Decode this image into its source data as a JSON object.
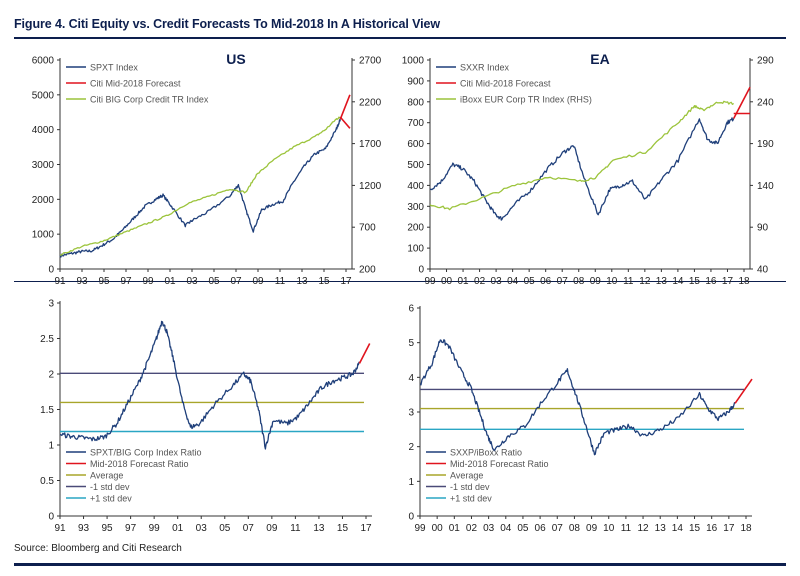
{
  "figure_title": "Figure 4. Citi Equity vs. Credit Forecasts To Mid-2018 In A Historical View",
  "source": "Source: Bloomberg and Citi Research",
  "colors": {
    "navy": "#1f3f7a",
    "red": "#e0141e",
    "green": "#9cc43c",
    "olive": "#a8a52a",
    "teal": "#2aa6c4",
    "purple": "#4a4a78"
  },
  "chart_data": [
    {
      "id": "us-top",
      "type": "line",
      "title": "US",
      "x_ticks": [
        "91",
        "93",
        "95",
        "97",
        "99",
        "01",
        "03",
        "05",
        "07",
        "09",
        "11",
        "13",
        "15",
        "17"
      ],
      "x_range": [
        1991,
        2018.5
      ],
      "y_ticks": [
        "0",
        "1000",
        "2000",
        "3000",
        "4000",
        "5000",
        "6000"
      ],
      "ylim": [
        0,
        6000
      ],
      "y2_ticks": [
        "200",
        "700",
        "1200",
        "1700",
        "2200",
        "2700"
      ],
      "y2lim": [
        200,
        3200
      ],
      "legend": [
        "SPXT Index",
        "Citi Mid-2018 Forecast",
        "Citi BIG Corp Credit TR Index"
      ],
      "legend_placement": "top-left",
      "series": [
        {
          "name": "SPXT Index",
          "color": "#1f3f7a",
          "noise": 40,
          "x": [
            1991,
            1992,
            1993,
            1994,
            1995,
            1996,
            1997,
            1998,
            1999,
            2000,
            2000.7,
            2001.5,
            2002.8,
            2003.5,
            2005,
            2007,
            2007.8,
            2008.5,
            2009.2,
            2010,
            2011,
            2012,
            2013,
            2014,
            2015,
            2016,
            2017,
            2017.4
          ],
          "y": [
            380,
            440,
            500,
            520,
            680,
            860,
            1150,
            1480,
            1800,
            2000,
            2120,
            1800,
            1250,
            1400,
            1650,
            2100,
            2420,
            1700,
            1100,
            1700,
            1850,
            1950,
            2500,
            2950,
            3300,
            3450,
            4000,
            4300
          ]
        },
        {
          "name": "Citi BIG Corp Credit TR Index",
          "color": "#9cc43c",
          "noise": 12,
          "axis": "y2",
          "x": [
            1991,
            1993,
            1995,
            1997,
            1999,
            2001,
            2003,
            2005,
            2007,
            2008.5,
            2009.5,
            2011,
            2013,
            2015,
            2016,
            2017,
            2017.4
          ],
          "y": [
            400,
            520,
            600,
            720,
            840,
            960,
            1140,
            1240,
            1350,
            1300,
            1550,
            1750,
            1950,
            2100,
            2200,
            2350,
            2380
          ]
        },
        {
          "name": "Citi Mid-2018 Forecast",
          "color": "#e0141e",
          "x": [
            2017.4,
            2018.3
          ],
          "y": [
            4300,
            5000
          ]
        },
        {
          "name": "Citi BIG Corp Credit Forecast",
          "color": "#e0141e",
          "axis": "y2",
          "x": [
            2017.4,
            2018.3
          ],
          "y": [
            2380,
            2220
          ]
        }
      ]
    },
    {
      "id": "ea-top",
      "type": "line",
      "title": "EA",
      "x_ticks": [
        "99",
        "00",
        "01",
        "02",
        "03",
        "04",
        "05",
        "06",
        "07",
        "08",
        "09",
        "10",
        "11",
        "12",
        "13",
        "14",
        "15",
        "16",
        "17",
        "18"
      ],
      "x_range": [
        1998.8,
        2018.4
      ],
      "y_ticks": [
        "0",
        "100",
        "200",
        "300",
        "400",
        "500",
        "600",
        "700",
        "800",
        "900",
        "1000"
      ],
      "ylim": [
        0,
        1000
      ],
      "y2_ticks": [
        "40",
        "90",
        "140",
        "190",
        "240",
        "290"
      ],
      "y2lim": [
        40,
        290
      ],
      "legend": [
        "SXXR Index",
        "Citi Mid-2018 Forecast",
        "iBoxx EUR Corp TR Index (RHS)"
      ],
      "legend_placement": "top-left",
      "series": [
        {
          "name": "SXXR Index",
          "color": "#1f3f7a",
          "noise": 9,
          "x": [
            1998.8,
            1999.5,
            2000.2,
            2000.8,
            2001.5,
            2002.2,
            2002.8,
            2003.2,
            2004,
            2005,
            2006,
            2007,
            2007.6,
            2008.3,
            2009.1,
            2009.8,
            2010.5,
            2011.2,
            2012,
            2013,
            2014,
            2015.3,
            2015.8,
            2016.4,
            2017,
            2017.4
          ],
          "y": [
            380,
            420,
            500,
            480,
            420,
            330,
            260,
            240,
            310,
            380,
            480,
            560,
            590,
            420,
            260,
            380,
            400,
            420,
            330,
            430,
            520,
            720,
            620,
            600,
            700,
            720
          ]
        },
        {
          "name": "iBoxx EUR Corp TR Index (RHS)",
          "color": "#9cc43c",
          "noise": 1.5,
          "axis": "y2",
          "x": [
            1998.8,
            2000,
            2002,
            2004,
            2006,
            2008,
            2009,
            2010,
            2012,
            2014,
            2015,
            2015.5,
            2016.5,
            2017.4
          ],
          "y": [
            117,
            112,
            125,
            140,
            150,
            145,
            150,
            170,
            180,
            215,
            235,
            230,
            240,
            238
          ]
        },
        {
          "name": "Citi Mid-2018 Forecast",
          "color": "#e0141e",
          "x": [
            2017.4,
            2018.4
          ],
          "y": [
            720,
            870
          ]
        },
        {
          "name": "iBoxx Forecast",
          "color": "#e0141e",
          "axis": "y2",
          "x": [
            2017.4,
            2018.4
          ],
          "y": [
            226,
            226
          ]
        }
      ]
    },
    {
      "id": "us-bottom",
      "type": "line",
      "title": "",
      "x_ticks": [
        "91",
        "93",
        "95",
        "97",
        "99",
        "01",
        "03",
        "05",
        "07",
        "09",
        "11",
        "13",
        "15",
        "17"
      ],
      "x_range": [
        1991,
        2018.5
      ],
      "y_ticks": [
        "0",
        "0.5",
        "1",
        "1.5",
        "2",
        "2.5",
        "3"
      ],
      "ylim": [
        0,
        3
      ],
      "legend": [
        "SPXT/BIG Corp Index Ratio",
        "Mid-2018 Forecast Ratio",
        "Average",
        "-1 std dev",
        "+1 std dev"
      ],
      "legend_placement": "bottom-left",
      "hlines": [
        {
          "name": "Average",
          "value": 1.6,
          "color": "#a8a52a"
        },
        {
          "name": "-1 std dev",
          "value": 1.19,
          "color": "#2aa6c4"
        },
        {
          "name": "+1 std dev",
          "value": 2.01,
          "color": "#4a4a78"
        }
      ],
      "series": [
        {
          "name": "SPXT/BIG Corp Index Ratio",
          "color": "#1f3f7a",
          "noise": 0.035,
          "x": [
            1991,
            1992,
            1993,
            1994,
            1995,
            1996,
            1997,
            1998,
            1998.8,
            1999.5,
            2000,
            2000.4,
            2001,
            2001.8,
            2002.5,
            2003.3,
            2004.5,
            2006,
            2007.2,
            2007.8,
            2008.5,
            2009.1,
            2009.8,
            2011,
            2012,
            2013,
            2014,
            2015,
            2016,
            2016.8,
            2017.4
          ],
          "y": [
            1.15,
            1.12,
            1.1,
            1.08,
            1.12,
            1.3,
            1.6,
            1.9,
            2.2,
            2.5,
            2.75,
            2.6,
            2.2,
            1.6,
            1.25,
            1.3,
            1.55,
            1.8,
            2.0,
            1.9,
            1.5,
            0.97,
            1.35,
            1.3,
            1.4,
            1.6,
            1.8,
            1.9,
            1.95,
            2.0,
            2.15
          ]
        },
        {
          "name": "Mid-2018 Forecast Ratio",
          "color": "#e0141e",
          "x": [
            2017.4,
            2018.3
          ],
          "y": [
            2.15,
            2.43
          ]
        }
      ]
    },
    {
      "id": "ea-bottom",
      "type": "line",
      "title": "",
      "x_ticks": [
        "99",
        "00",
        "01",
        "02",
        "03",
        "04",
        "05",
        "06",
        "07",
        "08",
        "09",
        "10",
        "11",
        "12",
        "13",
        "14",
        "15",
        "16",
        "17",
        "18"
      ],
      "x_range": [
        1998.8,
        2018.4
      ],
      "y_ticks": [
        "0",
        "1",
        "2",
        "3",
        "4",
        "5",
        "6"
      ],
      "ylim": [
        0,
        6
      ],
      "legend": [
        "SXXP/iBoxx Ratio",
        "Mid-2018 Forecast Ratio",
        "Average",
        "-1 std dev",
        "+1 std dev"
      ],
      "legend_placement": "bottom-left",
      "hlines": [
        {
          "name": "Average",
          "value": 3.1,
          "color": "#a8a52a"
        },
        {
          "name": "-1 std dev",
          "value": 2.5,
          "color": "#2aa6c4"
        },
        {
          "name": "+1 std dev",
          "value": 3.65,
          "color": "#4a4a78"
        }
      ],
      "series": [
        {
          "name": "SXXP/iBoxx Ratio",
          "color": "#1f3f7a",
          "noise": 0.07,
          "x": [
            1998.8,
            1999.5,
            2000,
            2000.5,
            2001.2,
            2001.8,
            2002.3,
            2002.8,
            2003.2,
            2004,
            2005,
            2006,
            2007,
            2007.5,
            2008,
            2008.6,
            2009.1,
            2009.7,
            2010.5,
            2011.2,
            2012,
            2013,
            2014,
            2015.3,
            2015.8,
            2016.4,
            2017,
            2017.4
          ],
          "y": [
            3.8,
            4.4,
            5.1,
            4.9,
            4.2,
            3.7,
            3.0,
            2.3,
            1.9,
            2.3,
            2.6,
            3.3,
            3.9,
            4.2,
            3.5,
            2.6,
            1.8,
            2.4,
            2.5,
            2.6,
            2.3,
            2.5,
            2.8,
            3.5,
            3.1,
            2.8,
            3.0,
            3.25
          ]
        },
        {
          "name": "Mid-2018 Forecast Ratio",
          "color": "#e0141e",
          "x": [
            2017.4,
            2018.4
          ],
          "y": [
            3.25,
            3.95
          ]
        }
      ]
    }
  ]
}
